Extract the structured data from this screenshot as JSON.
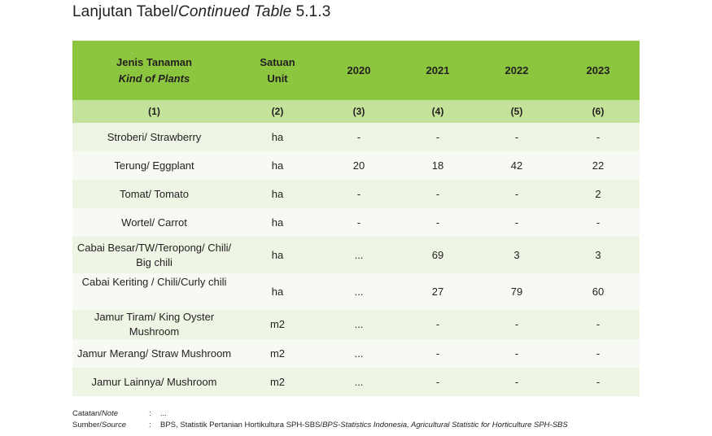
{
  "title": {
    "main": "Lanjutan Tabel/",
    "italic": "Continued Table",
    "num": " 5.1.3"
  },
  "header": {
    "col1_id": "Jenis Tanaman",
    "col1_en": "Kind of Plants",
    "col2_id": "Satuan",
    "col2_en": "Unit",
    "years": [
      "2020",
      "2021",
      "2022",
      "2023"
    ]
  },
  "col_numbers": [
    "(1)",
    "(2)",
    "(3)",
    "(4)",
    "(5)",
    "(6)"
  ],
  "rows": [
    {
      "name": "Stroberi/ Strawberry",
      "unit": "ha",
      "v2020": "-",
      "v2021": "-",
      "v2022": "-",
      "v2023": "-"
    },
    {
      "name": "Terung/ Eggplant",
      "unit": "ha",
      "v2020": "20",
      "v2021": "18",
      "v2022": "42",
      "v2023": "22"
    },
    {
      "name": "Tomat/ Tomato",
      "unit": "ha",
      "v2020": "-",
      "v2021": "-",
      "v2022": "-",
      "v2023": "2"
    },
    {
      "name": "Wortel/ Carrot",
      "unit": "ha",
      "v2020": "-",
      "v2021": "-",
      "v2022": "-",
      "v2023": "-"
    },
    {
      "name_l1": "Cabai Besar/TW/Teropong/ Chili/",
      "name_l2": "Big chili",
      "unit": "ha",
      "v2020": "...",
      "v2021": "69",
      "v2022": "3",
      "v2023": "3"
    },
    {
      "name": "Cabai Keriting / Chili/Curly chili",
      "unit": "ha",
      "v2020": "...",
      "v2021": "27",
      "v2022": "79",
      "v2023": "60"
    },
    {
      "name": "Jamur Tiram/ King Oyster Mushroom",
      "unit": "m2",
      "v2020": "...",
      "v2021": "-",
      "v2022": "-",
      "v2023": "-"
    },
    {
      "name": "Jamur Merang/ Straw Mushroom",
      "unit": "m2",
      "v2020": "...",
      "v2021": "-",
      "v2022": "-",
      "v2023": "-"
    },
    {
      "name": "Jamur Lainnya/ Mushroom",
      "unit": "m2",
      "v2020": "...",
      "v2021": "-",
      "v2022": "-",
      "v2023": "-"
    }
  ],
  "notes": {
    "note_label_id": "Catatan/",
    "note_label_en": "Note",
    "note_colon": ":",
    "note_value": "...",
    "source_label_id": "Sumber/",
    "source_label_en": "Source",
    "source_colon": ":",
    "source_value_id": "BPS, Statistik Pertanian Hortikultura SPH-SBS/",
    "source_value_en": "BPS-Statistics Indonesia, Agricultural Statistic for Horticulture SPH-SBS"
  },
  "colors": {
    "header": "#8cc63f",
    "subheader": "#c5e29a",
    "row_a": "#eef5e5",
    "row_b": "#f7faf2"
  }
}
